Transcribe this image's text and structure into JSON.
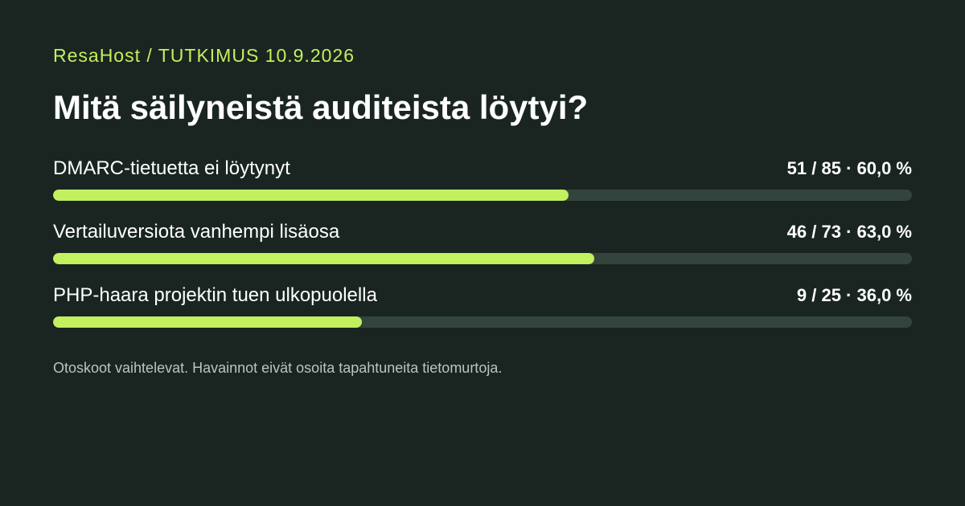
{
  "header": {
    "eyebrow": "ResaHost / TUTKIMUS 10.9.2026",
    "title": "Mitä säilyneistä auditeista löytyi?"
  },
  "footnote": "Otoskoot vaihtelevat. Havainnot eivät osoita tapahtuneita tietomurtoja.",
  "colors": {
    "background": "#1a2521",
    "accent": "#c2f05f",
    "track": "#33443d",
    "footnote": "#b8c4be"
  },
  "chart_data": {
    "type": "bar",
    "orientation": "horizontal",
    "categories": [
      "DMARC-tietuetta ei löytynyt",
      "Vertailuversiota vanhempi lisäosa",
      "PHP-haara projektin tuen ulkopuolella"
    ],
    "values": [
      60.0,
      63.0,
      36.0
    ],
    "value_labels": [
      "51 / 85 · 60,0 %",
      "46 / 73 · 63,0 %",
      "9 / 25 · 36,0 %"
    ],
    "counts": [
      {
        "found": 51,
        "total": 85
      },
      {
        "found": 46,
        "total": 73
      },
      {
        "found": 9,
        "total": 25
      }
    ],
    "xlim": [
      0,
      100
    ],
    "grid": false,
    "legend": "none"
  }
}
